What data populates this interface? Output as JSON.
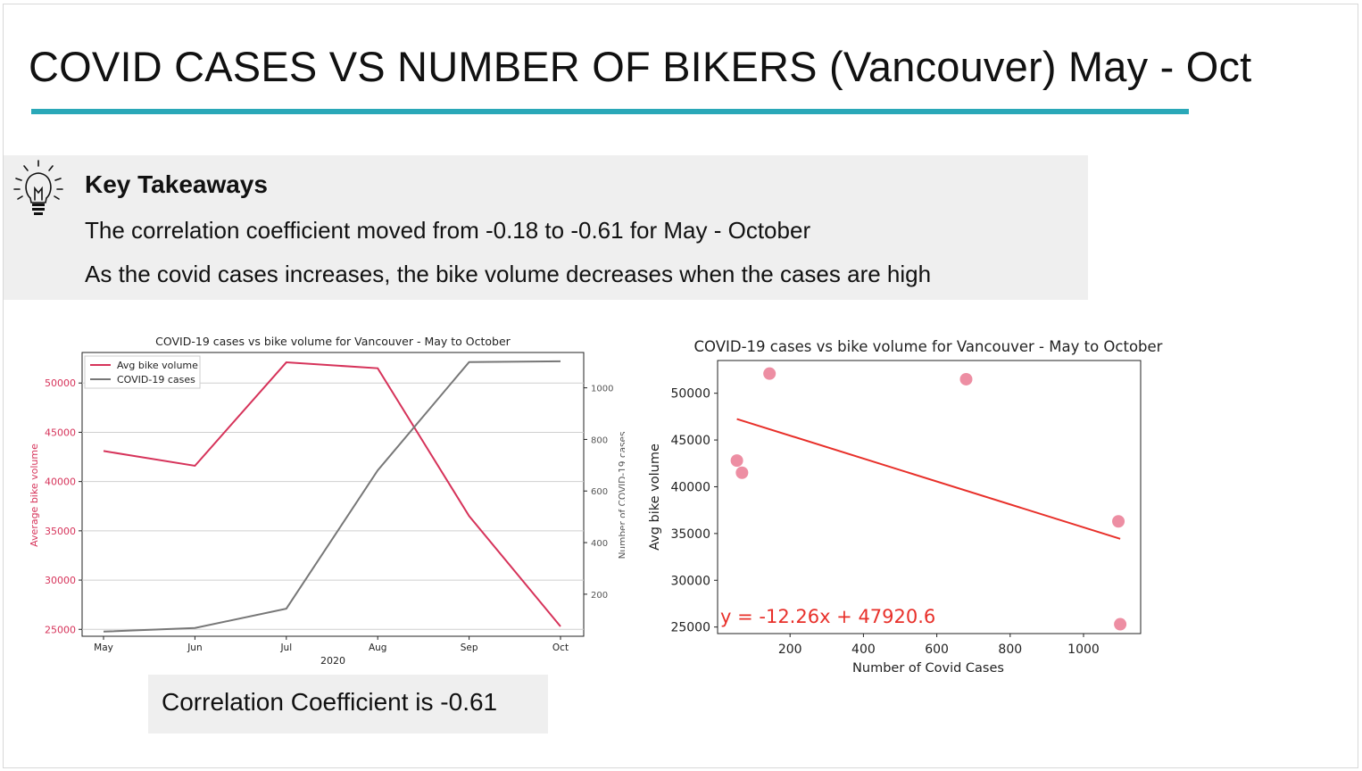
{
  "slide": {
    "title": "COVID CASES VS NUMBER OF BIKERS (Vancouver) May - Oct",
    "takeaways": {
      "icon": "lightbulb-icon",
      "heading": "Key Takeaways",
      "lines": [
        "The correlation coefficient moved from -0.18 to -0.61 for May - October",
        "As the covid cases increases, the bike volume decreases when the cases are high"
      ]
    },
    "correlation_text": "Correlation Coefficient is -0.61",
    "accent_color": "#2aa8b8"
  },
  "chart_data": [
    {
      "type": "line",
      "title": "COVID-19 cases vs bike volume for Vancouver - May to October",
      "xlabel": "2020",
      "ylabel": "Average bike volume",
      "ylabel_right": "Number of COVID-19 cases",
      "categories": [
        "May",
        "Jun",
        "Jul",
        "Aug",
        "Sep",
        "Oct"
      ],
      "ylim": [
        24300,
        53100
      ],
      "ylim_right": [
        37,
        1137
      ],
      "yticks": [
        25000,
        30000,
        35000,
        40000,
        45000,
        50000
      ],
      "yticks_right": [
        200,
        400,
        600,
        800,
        1000
      ],
      "grid": true,
      "legend": "top-left",
      "series": [
        {
          "name": "Avg bike volume",
          "axis": "left",
          "color": "#d6335a",
          "values": [
            43100,
            41600,
            52100,
            51500,
            36500,
            25300
          ]
        },
        {
          "name": "COVID-19 cases",
          "axis": "right",
          "color": "#777777",
          "values": [
            55,
            69,
            144,
            680,
            1100,
            1103
          ]
        }
      ]
    },
    {
      "type": "scatter",
      "title": "COVID-19 cases vs bike volume for Vancouver - May to October",
      "xlabel": "Number of Covid Cases",
      "ylabel": "Avg bike volume",
      "xlim": [
        0,
        1150
      ],
      "ylim": [
        24300,
        53500
      ],
      "xticks": [
        200,
        400,
        600,
        800,
        1000
      ],
      "yticks": [
        25000,
        30000,
        35000,
        40000,
        45000,
        50000
      ],
      "points": [
        {
          "x": 55,
          "y": 42800
        },
        {
          "x": 69,
          "y": 41500
        },
        {
          "x": 144,
          "y": 52100
        },
        {
          "x": 680,
          "y": 51500
        },
        {
          "x": 1095,
          "y": 36300
        },
        {
          "x": 1100,
          "y": 25300
        }
      ],
      "point_color": "#e8728c",
      "regression": {
        "slope": -12.26,
        "intercept": 47920.6,
        "x_range": [
          55,
          1100
        ],
        "color": "#e8302a"
      },
      "equation_label": "y = -12.26x + 47920.6"
    }
  ]
}
